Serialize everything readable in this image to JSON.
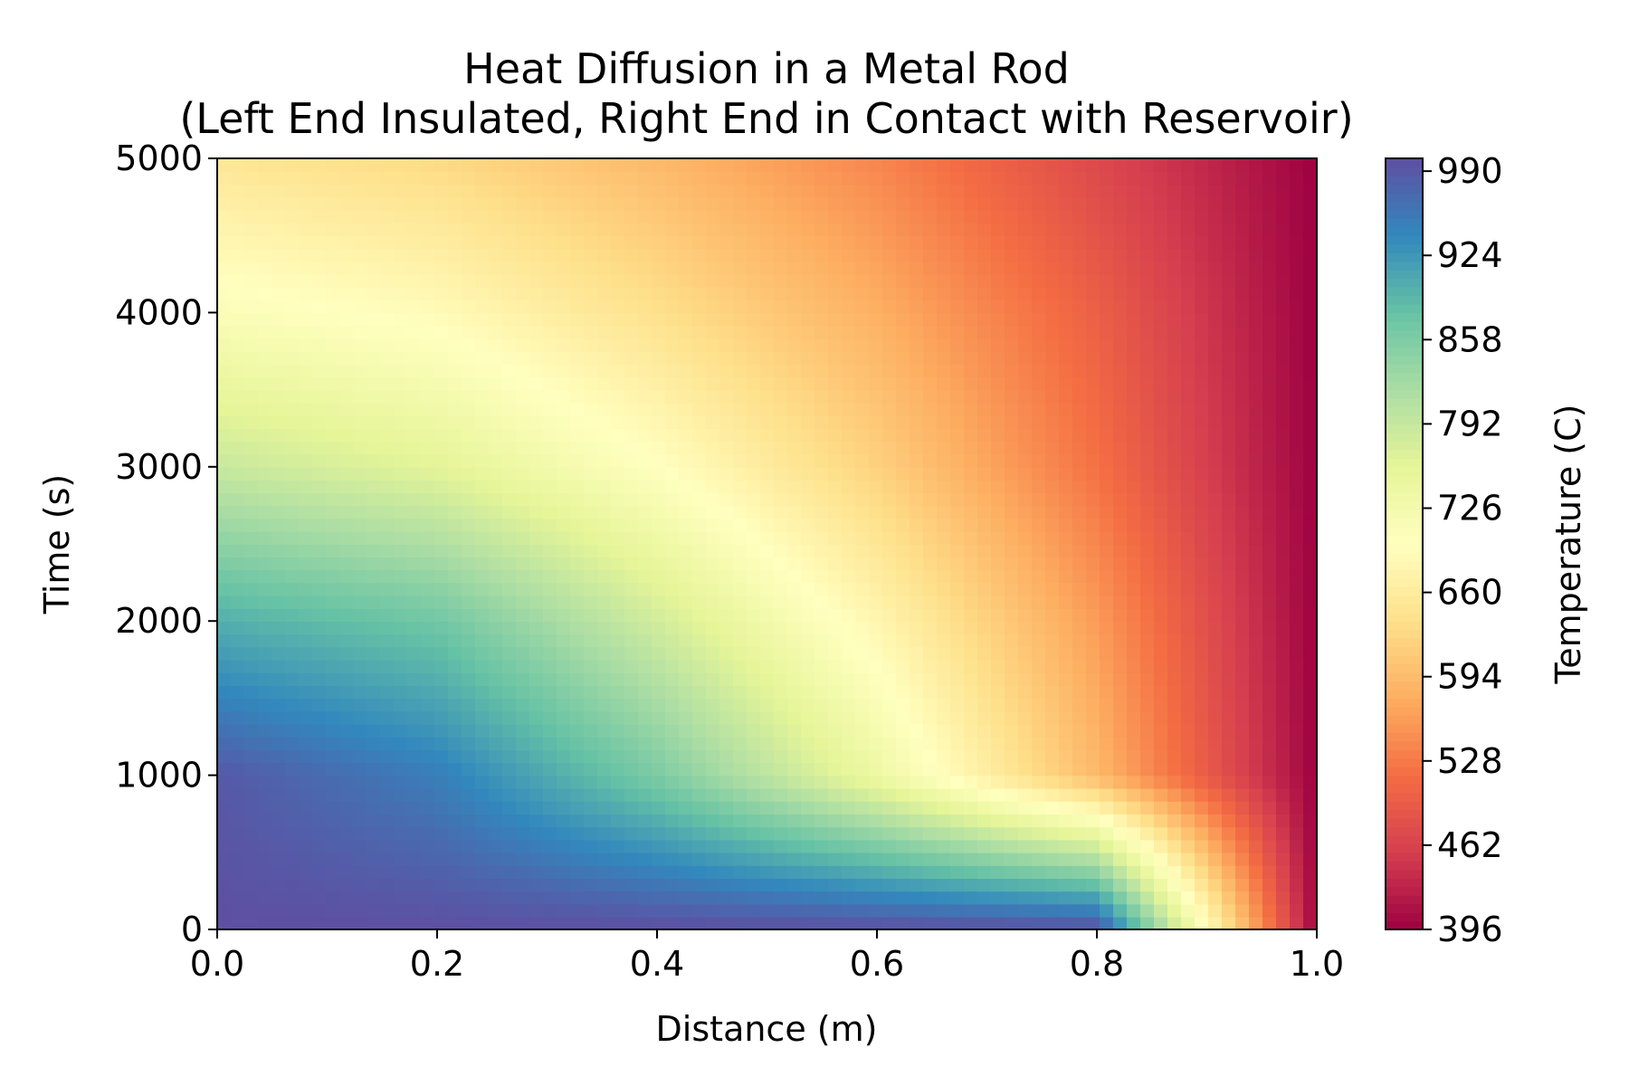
{
  "chart_data": {
    "type": "heatmap",
    "title": "Heat Diffusion in a Metal Rod",
    "subtitle": "(Left End Insulated, Right End in Contact with Reservoir)",
    "xlabel": "Distance (m)",
    "ylabel": "Time (s)",
    "colorbar_label": "Temperature (C)",
    "xlim": [
      0.0,
      1.0
    ],
    "ylim": [
      0,
      5000
    ],
    "x_ticks": [
      "0.0",
      "0.2",
      "0.4",
      "0.6",
      "0.8",
      "1.0"
    ],
    "y_ticks": [
      "0",
      "1000",
      "2000",
      "3000",
      "4000",
      "5000"
    ],
    "colorbar_ticks": [
      "396",
      "462",
      "528",
      "594",
      "660",
      "726",
      "792",
      "858",
      "924",
      "990"
    ],
    "value_range": [
      396,
      1000
    ],
    "colormap": "Spectral_r",
    "grid": false,
    "z_samples": {
      "x": [
        0.0,
        0.2,
        0.4,
        0.6,
        0.8,
        1.0
      ],
      "t": [
        0,
        1000,
        2000,
        3000,
        4000,
        5000
      ],
      "values": [
        [
          1000,
          1000,
          1000,
          1000,
          1000,
          396
        ],
        [
          990,
          950,
          860,
          740,
          590,
          396
        ],
        [
          900,
          870,
          780,
          680,
          560,
          396
        ],
        [
          790,
          760,
          700,
          620,
          520,
          396
        ],
        [
          710,
          690,
          640,
          580,
          500,
          396
        ],
        [
          650,
          630,
          590,
          540,
          470,
          396
        ]
      ]
    }
  }
}
